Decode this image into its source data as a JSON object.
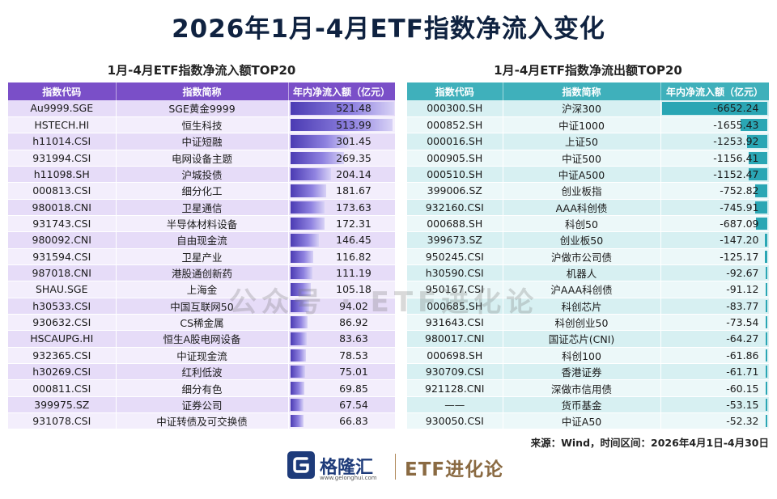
{
  "title": "2026年1月-4月ETF指数净流入变化",
  "source": "来源：Wind，时间区间：2026年4月1日-4月30日",
  "watermark": "公众号 · ETF进化论",
  "footer": {
    "brand_cn": "格隆汇",
    "brand_url": "www.gelonghui.com",
    "brand_etf": "ETF进化论"
  },
  "colors": {
    "inflow_header": "#7a4fc8",
    "outflow_header": "#3fb0bb",
    "inflow_bar": "#4b3bb3",
    "outflow_bar": "#2aa6b4"
  },
  "chart_data": [
    {
      "type": "table",
      "title": "1月-4月ETF指数净流入额TOP20",
      "columns": [
        "指数代码",
        "指数简称",
        "年内净流入额（亿元）"
      ],
      "value_max": 521.48,
      "rows": [
        {
          "code": "Au9999.SGE",
          "name": "SGE黄金9999",
          "value": "521.48"
        },
        {
          "code": "HSTECH.HI",
          "name": "恒生科技",
          "value": "513.99"
        },
        {
          "code": "h11014.CSI",
          "name": "中证短融",
          "value": "301.45"
        },
        {
          "code": "931994.CSI",
          "name": "电网设备主题",
          "value": "269.35"
        },
        {
          "code": "h11098.SH",
          "name": "沪城投债",
          "value": "204.14"
        },
        {
          "code": "000813.CSI",
          "name": "细分化工",
          "value": "181.67"
        },
        {
          "code": "980018.CNI",
          "name": "卫星通信",
          "value": "173.63"
        },
        {
          "code": "931743.CSI",
          "name": "半导体材料设备",
          "value": "172.31"
        },
        {
          "code": "980092.CNI",
          "name": "自由现金流",
          "value": "146.45"
        },
        {
          "code": "931594.CSI",
          "name": "卫星产业",
          "value": "116.82"
        },
        {
          "code": "987018.CNI",
          "name": "港股通创新药",
          "value": "111.19"
        },
        {
          "code": "SHAU.SGE",
          "name": "上海金",
          "value": "105.18"
        },
        {
          "code": "h30533.CSI",
          "name": "中国互联网50",
          "value": "94.02"
        },
        {
          "code": "930632.CSI",
          "name": "CS稀金属",
          "value": "86.92"
        },
        {
          "code": "HSCAUPG.HI",
          "name": "恒生A股电网设备",
          "value": "83.63"
        },
        {
          "code": "932365.CSI",
          "name": "中证现金流",
          "value": "78.53"
        },
        {
          "code": "h30269.CSI",
          "name": "红利低波",
          "value": "75.01"
        },
        {
          "code": "000811.CSI",
          "name": "细分有色",
          "value": "69.85"
        },
        {
          "code": "399975.SZ",
          "name": "证券公司",
          "value": "67.54"
        },
        {
          "code": "931078.CSI",
          "name": "中证转债及可交换债",
          "value": "66.83"
        }
      ]
    },
    {
      "type": "table",
      "title": "1月-4月ETF指数净流出额TOP20",
      "columns": [
        "指数代码",
        "指数简称",
        "年内净流入额（亿元）"
      ],
      "value_max": 6652.24,
      "rows": [
        {
          "code": "000300.SH",
          "name": "沪深300",
          "value": "-6652.24"
        },
        {
          "code": "000852.SH",
          "name": "中证1000",
          "value": "-1655.43"
        },
        {
          "code": "000016.SH",
          "name": "上证50",
          "value": "-1253.92"
        },
        {
          "code": "000905.SH",
          "name": "中证500",
          "value": "-1156.41"
        },
        {
          "code": "000510.SH",
          "name": "中证A500",
          "value": "-1152.47"
        },
        {
          "code": "399006.SZ",
          "name": "创业板指",
          "value": "-752.82"
        },
        {
          "code": "932160.CSI",
          "name": "AAA科创债",
          "value": "-745.91"
        },
        {
          "code": "000688.SH",
          "name": "科创50",
          "value": "-687.09"
        },
        {
          "code": "399673.SZ",
          "name": "创业板50",
          "value": "-147.20"
        },
        {
          "code": "950245.CSI",
          "name": "沪做市公司债",
          "value": "-125.17"
        },
        {
          "code": "h30590.CSI",
          "name": "机器人",
          "value": "-92.67"
        },
        {
          "code": "950167.CSI",
          "name": "沪AAA科创债",
          "value": "-91.12"
        },
        {
          "code": "000685.SH",
          "name": "科创芯片",
          "value": "-83.77"
        },
        {
          "code": "931643.CSI",
          "name": "科创创业50",
          "value": "-73.54"
        },
        {
          "code": "980017.CNI",
          "name": "国证芯片(CNI)",
          "value": "-64.27"
        },
        {
          "code": "000698.SH",
          "name": "科创100",
          "value": "-61.86"
        },
        {
          "code": "930709.CSI",
          "name": "香港证券",
          "value": "-61.71"
        },
        {
          "code": "921128.CNI",
          "name": "深做市信用债",
          "value": "-60.15"
        },
        {
          "code": "——",
          "name": "货币基金",
          "value": "-53.15"
        },
        {
          "code": "930050.CSI",
          "name": "中证A50",
          "value": "-52.32"
        }
      ]
    }
  ]
}
